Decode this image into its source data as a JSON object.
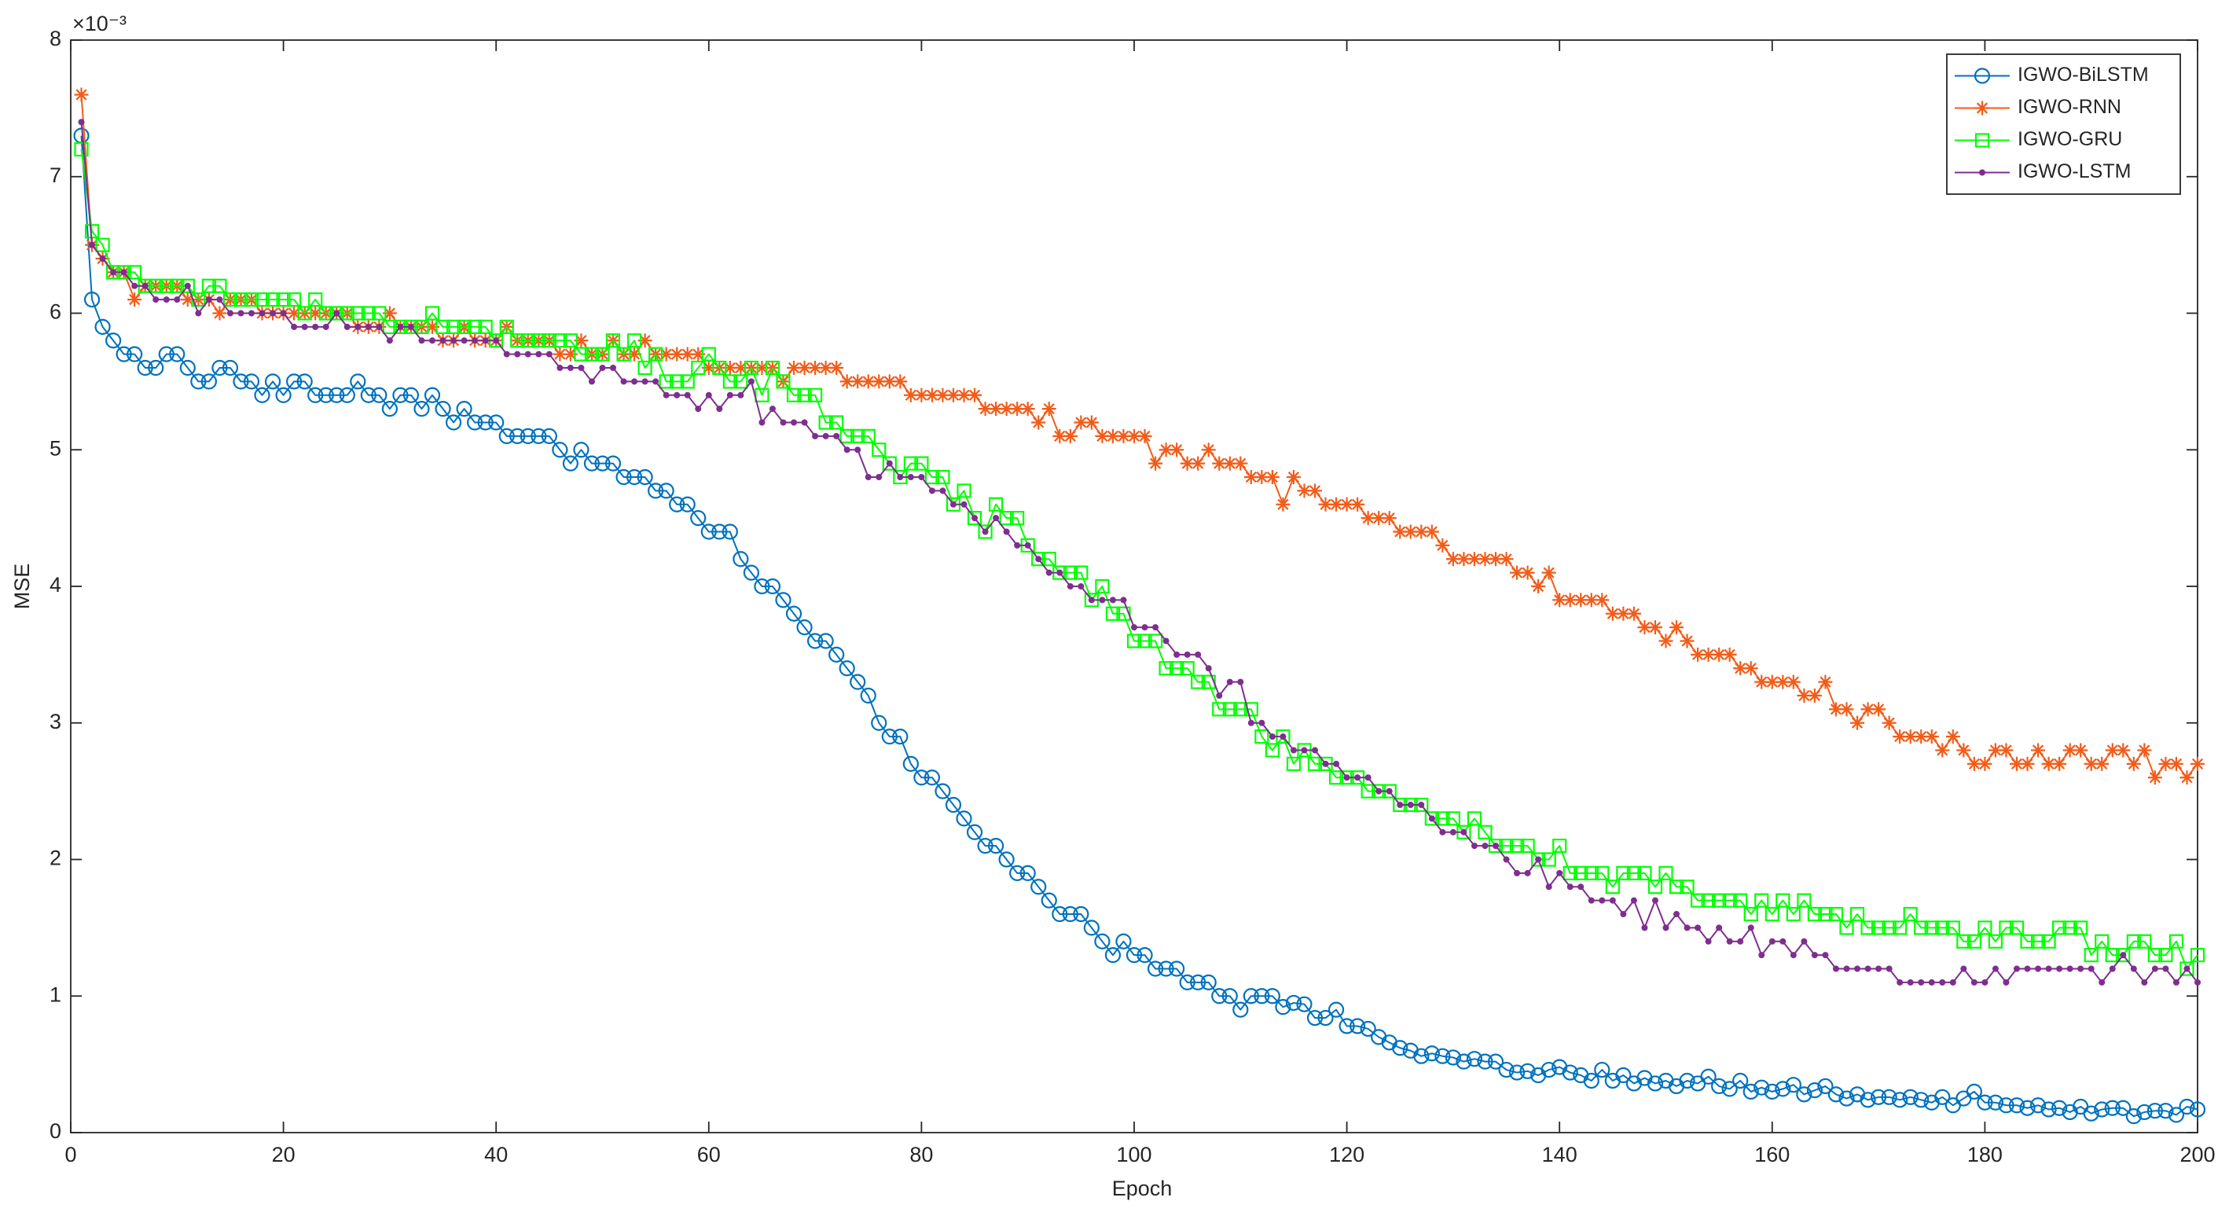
{
  "chart_data": {
    "type": "line",
    "x_label": "Epoch",
    "y_label": "MSE",
    "y_exponent": "×10⁻³",
    "xlim": [
      0,
      200
    ],
    "ylim": [
      0,
      8
    ],
    "xticks": [
      0,
      20,
      40,
      60,
      80,
      100,
      120,
      140,
      160,
      180,
      200
    ],
    "yticks": [
      0,
      1,
      2,
      3,
      4,
      5,
      6,
      7,
      8
    ],
    "grid": false,
    "legend_location": "northeast",
    "x": [
      1,
      2,
      3,
      4,
      5,
      6,
      7,
      8,
      9,
      10,
      11,
      12,
      13,
      14,
      15,
      16,
      17,
      18,
      19,
      20,
      21,
      22,
      23,
      24,
      25,
      26,
      27,
      28,
      29,
      30,
      31,
      32,
      33,
      34,
      35,
      36,
      37,
      38,
      39,
      40,
      41,
      42,
      43,
      44,
      45,
      46,
      47,
      48,
      49,
      50,
      51,
      52,
      53,
      54,
      55,
      56,
      57,
      58,
      59,
      60,
      61,
      62,
      63,
      64,
      65,
      66,
      67,
      68,
      69,
      70,
      71,
      72,
      73,
      74,
      75,
      76,
      77,
      78,
      79,
      80,
      81,
      82,
      83,
      84,
      85,
      86,
      87,
      88,
      89,
      90,
      91,
      92,
      93,
      94,
      95,
      96,
      97,
      98,
      99,
      100,
      101,
      102,
      103,
      104,
      105,
      106,
      107,
      108,
      109,
      110,
      111,
      112,
      113,
      114,
      115,
      116,
      117,
      118,
      119,
      120,
      121,
      122,
      123,
      124,
      125,
      126,
      127,
      128,
      129,
      130,
      131,
      132,
      133,
      134,
      135,
      136,
      137,
      138,
      139,
      140,
      141,
      142,
      143,
      144,
      145,
      146,
      147,
      148,
      149,
      150,
      151,
      152,
      153,
      154,
      155,
      156,
      157,
      158,
      159,
      160,
      161,
      162,
      163,
      164,
      165,
      166,
      167,
      168,
      169,
      170,
      171,
      172,
      173,
      174,
      175,
      176,
      177,
      178,
      179,
      180,
      181,
      182,
      183,
      184,
      185,
      186,
      187,
      188,
      189,
      190,
      191,
      192,
      193,
      194,
      195,
      196,
      197,
      198,
      199,
      200
    ],
    "series": [
      {
        "name": "IGWO-BiLSTM",
        "color": "#0072BD",
        "marker": "circle",
        "values": [
          7.3,
          6.1,
          5.9,
          5.8,
          5.7,
          5.7,
          5.6,
          5.6,
          5.7,
          5.7,
          5.6,
          5.5,
          5.5,
          5.6,
          5.6,
          5.5,
          5.5,
          5.4,
          5.5,
          5.4,
          5.5,
          5.5,
          5.4,
          5.4,
          5.4,
          5.4,
          5.5,
          5.4,
          5.4,
          5.3,
          5.4,
          5.4,
          5.3,
          5.4,
          5.3,
          5.2,
          5.3,
          5.2,
          5.2,
          5.2,
          5.1,
          5.1,
          5.1,
          5.1,
          5.1,
          5.0,
          4.9,
          5.0,
          4.9,
          4.9,
          4.9,
          4.8,
          4.8,
          4.8,
          4.7,
          4.7,
          4.6,
          4.6,
          4.5,
          4.4,
          4.4,
          4.4,
          4.2,
          4.1,
          4.0,
          4.0,
          3.9,
          3.8,
          3.7,
          3.6,
          3.6,
          3.5,
          3.4,
          3.3,
          3.2,
          3.0,
          2.9,
          2.9,
          2.7,
          2.6,
          2.6,
          2.5,
          2.4,
          2.3,
          2.2,
          2.1,
          2.1,
          2.0,
          1.9,
          1.9,
          1.8,
          1.7,
          1.6,
          1.6,
          1.6,
          1.5,
          1.4,
          1.3,
          1.4,
          1.3,
          1.3,
          1.2,
          1.2,
          1.2,
          1.1,
          1.1,
          1.1,
          1.0,
          1.0,
          0.9,
          1.0,
          1.0,
          1.0,
          0.92,
          0.95,
          0.94,
          0.84,
          0.84,
          0.9,
          0.78,
          0.78,
          0.76,
          0.7,
          0.66,
          0.62,
          0.6,
          0.56,
          0.58,
          0.56,
          0.55,
          0.52,
          0.54,
          0.52,
          0.52,
          0.46,
          0.44,
          0.45,
          0.42,
          0.46,
          0.48,
          0.44,
          0.42,
          0.38,
          0.46,
          0.38,
          0.42,
          0.36,
          0.4,
          0.36,
          0.38,
          0.34,
          0.38,
          0.36,
          0.41,
          0.34,
          0.32,
          0.38,
          0.3,
          0.33,
          0.3,
          0.32,
          0.35,
          0.28,
          0.31,
          0.34,
          0.28,
          0.25,
          0.28,
          0.24,
          0.26,
          0.26,
          0.24,
          0.26,
          0.24,
          0.22,
          0.26,
          0.2,
          0.25,
          0.3,
          0.22,
          0.22,
          0.2,
          0.2,
          0.18,
          0.2,
          0.17,
          0.18,
          0.15,
          0.19,
          0.14,
          0.17,
          0.18,
          0.18,
          0.12,
          0.15,
          0.16,
          0.16,
          0.13,
          0.19,
          0.17
        ]
      },
      {
        "name": "IGWO-RNN",
        "color": "#F25C19",
        "marker": "asterisk",
        "values": [
          7.6,
          6.5,
          6.4,
          6.3,
          6.3,
          6.1,
          6.2,
          6.2,
          6.2,
          6.2,
          6.1,
          6.1,
          6.1,
          6.0,
          6.1,
          6.1,
          6.1,
          6.0,
          6.0,
          6.0,
          6.0,
          6.0,
          6.0,
          6.0,
          6.0,
          6.0,
          5.9,
          5.9,
          5.9,
          6.0,
          5.9,
          5.9,
          5.9,
          5.9,
          5.8,
          5.8,
          5.9,
          5.8,
          5.8,
          5.8,
          5.9,
          5.8,
          5.8,
          5.8,
          5.8,
          5.7,
          5.7,
          5.8,
          5.7,
          5.7,
          5.8,
          5.7,
          5.7,
          5.8,
          5.7,
          5.7,
          5.7,
          5.7,
          5.7,
          5.6,
          5.6,
          5.6,
          5.6,
          5.6,
          5.6,
          5.6,
          5.5,
          5.6,
          5.6,
          5.6,
          5.6,
          5.6,
          5.5,
          5.5,
          5.5,
          5.5,
          5.5,
          5.5,
          5.4,
          5.4,
          5.4,
          5.4,
          5.4,
          5.4,
          5.4,
          5.3,
          5.3,
          5.3,
          5.3,
          5.3,
          5.2,
          5.3,
          5.1,
          5.1,
          5.2,
          5.2,
          5.1,
          5.1,
          5.1,
          5.1,
          5.1,
          4.9,
          5.0,
          5.0,
          4.9,
          4.9,
          5.0,
          4.9,
          4.9,
          4.9,
          4.8,
          4.8,
          4.8,
          4.6,
          4.8,
          4.7,
          4.7,
          4.6,
          4.6,
          4.6,
          4.6,
          4.5,
          4.5,
          4.5,
          4.4,
          4.4,
          4.4,
          4.4,
          4.3,
          4.2,
          4.2,
          4.2,
          4.2,
          4.2,
          4.2,
          4.1,
          4.1,
          4.0,
          4.1,
          3.9,
          3.9,
          3.9,
          3.9,
          3.9,
          3.8,
          3.8,
          3.8,
          3.7,
          3.7,
          3.6,
          3.7,
          3.6,
          3.5,
          3.5,
          3.5,
          3.5,
          3.4,
          3.4,
          3.3,
          3.3,
          3.3,
          3.3,
          3.2,
          3.2,
          3.3,
          3.1,
          3.1,
          3.0,
          3.1,
          3.1,
          3.0,
          2.9,
          2.9,
          2.9,
          2.9,
          2.8,
          2.9,
          2.8,
          2.7,
          2.7,
          2.8,
          2.8,
          2.7,
          2.7,
          2.8,
          2.7,
          2.7,
          2.8,
          2.8,
          2.7,
          2.7,
          2.8,
          2.8,
          2.7,
          2.8,
          2.6,
          2.7,
          2.7,
          2.6,
          2.7
        ]
      },
      {
        "name": "IGWO-GRU",
        "color": "#00FF00",
        "marker": "square",
        "values": [
          7.2,
          6.6,
          6.5,
          6.3,
          6.3,
          6.3,
          6.2,
          6.2,
          6.2,
          6.2,
          6.2,
          6.1,
          6.2,
          6.2,
          6.1,
          6.1,
          6.1,
          6.1,
          6.1,
          6.1,
          6.1,
          6.0,
          6.1,
          6.0,
          6.0,
          6.0,
          6.0,
          6.0,
          6.0,
          5.9,
          5.9,
          5.9,
          5.9,
          6.0,
          5.9,
          5.9,
          5.9,
          5.9,
          5.9,
          5.8,
          5.9,
          5.8,
          5.8,
          5.8,
          5.8,
          5.8,
          5.8,
          5.7,
          5.7,
          5.7,
          5.8,
          5.7,
          5.8,
          5.6,
          5.7,
          5.5,
          5.5,
          5.5,
          5.6,
          5.7,
          5.6,
          5.5,
          5.5,
          5.6,
          5.4,
          5.6,
          5.5,
          5.4,
          5.4,
          5.4,
          5.2,
          5.2,
          5.1,
          5.1,
          5.1,
          5.0,
          4.9,
          4.8,
          4.9,
          4.9,
          4.8,
          4.8,
          4.6,
          4.7,
          4.5,
          4.4,
          4.6,
          4.5,
          4.5,
          4.3,
          4.2,
          4.2,
          4.1,
          4.1,
          4.1,
          3.9,
          4.0,
          3.8,
          3.8,
          3.6,
          3.6,
          3.6,
          3.4,
          3.4,
          3.4,
          3.3,
          3.3,
          3.1,
          3.1,
          3.1,
          3.1,
          2.9,
          2.8,
          2.9,
          2.7,
          2.8,
          2.7,
          2.7,
          2.6,
          2.6,
          2.6,
          2.5,
          2.5,
          2.5,
          2.4,
          2.4,
          2.4,
          2.3,
          2.3,
          2.3,
          2.2,
          2.3,
          2.2,
          2.1,
          2.1,
          2.1,
          2.1,
          2.0,
          2.0,
          2.1,
          1.9,
          1.9,
          1.9,
          1.9,
          1.8,
          1.9,
          1.9,
          1.9,
          1.8,
          1.9,
          1.8,
          1.8,
          1.7,
          1.7,
          1.7,
          1.7,
          1.7,
          1.6,
          1.7,
          1.6,
          1.7,
          1.6,
          1.7,
          1.6,
          1.6,
          1.6,
          1.5,
          1.6,
          1.5,
          1.5,
          1.5,
          1.5,
          1.6,
          1.5,
          1.5,
          1.5,
          1.5,
          1.4,
          1.4,
          1.5,
          1.4,
          1.5,
          1.5,
          1.4,
          1.4,
          1.4,
          1.5,
          1.5,
          1.5,
          1.3,
          1.4,
          1.3,
          1.3,
          1.4,
          1.4,
          1.3,
          1.3,
          1.4,
          1.2,
          1.3
        ]
      },
      {
        "name": "IGWO-LSTM",
        "color": "#7E2F8E",
        "marker": "dot",
        "values": [
          7.4,
          6.5,
          6.4,
          6.3,
          6.3,
          6.2,
          6.2,
          6.1,
          6.1,
          6.1,
          6.2,
          6.0,
          6.1,
          6.1,
          6.0,
          6.0,
          6.0,
          6.0,
          6.0,
          6.0,
          5.9,
          5.9,
          5.9,
          5.9,
          6.0,
          5.9,
          5.9,
          5.9,
          5.9,
          5.8,
          5.9,
          5.9,
          5.8,
          5.8,
          5.8,
          5.8,
          5.8,
          5.8,
          5.8,
          5.8,
          5.7,
          5.7,
          5.7,
          5.7,
          5.7,
          5.6,
          5.6,
          5.6,
          5.5,
          5.6,
          5.6,
          5.5,
          5.5,
          5.5,
          5.5,
          5.4,
          5.4,
          5.4,
          5.3,
          5.4,
          5.3,
          5.4,
          5.4,
          5.5,
          5.2,
          5.3,
          5.2,
          5.2,
          5.2,
          5.1,
          5.1,
          5.1,
          5.0,
          5.0,
          4.8,
          4.8,
          4.9,
          4.8,
          4.8,
          4.8,
          4.7,
          4.7,
          4.6,
          4.6,
          4.5,
          4.4,
          4.5,
          4.4,
          4.3,
          4.3,
          4.2,
          4.1,
          4.1,
          4.0,
          4.0,
          3.9,
          3.9,
          3.9,
          3.9,
          3.7,
          3.7,
          3.7,
          3.6,
          3.5,
          3.5,
          3.5,
          3.4,
          3.2,
          3.3,
          3.3,
          3.0,
          3.0,
          2.9,
          2.9,
          2.8,
          2.8,
          2.8,
          2.7,
          2.7,
          2.6,
          2.6,
          2.6,
          2.5,
          2.5,
          2.4,
          2.4,
          2.4,
          2.3,
          2.2,
          2.2,
          2.2,
          2.1,
          2.1,
          2.1,
          2.0,
          1.9,
          1.9,
          2.0,
          1.8,
          1.9,
          1.8,
          1.8,
          1.7,
          1.7,
          1.7,
          1.6,
          1.7,
          1.5,
          1.7,
          1.5,
          1.6,
          1.5,
          1.5,
          1.4,
          1.5,
          1.4,
          1.4,
          1.5,
          1.3,
          1.4,
          1.4,
          1.3,
          1.4,
          1.3,
          1.3,
          1.2,
          1.2,
          1.2,
          1.2,
          1.2,
          1.2,
          1.1,
          1.1,
          1.1,
          1.1,
          1.1,
          1.1,
          1.2,
          1.1,
          1.1,
          1.2,
          1.1,
          1.2,
          1.2,
          1.2,
          1.2,
          1.2,
          1.2,
          1.2,
          1.2,
          1.1,
          1.2,
          1.3,
          1.2,
          1.1,
          1.2,
          1.2,
          1.1,
          1.2,
          1.1
        ]
      }
    ]
  }
}
